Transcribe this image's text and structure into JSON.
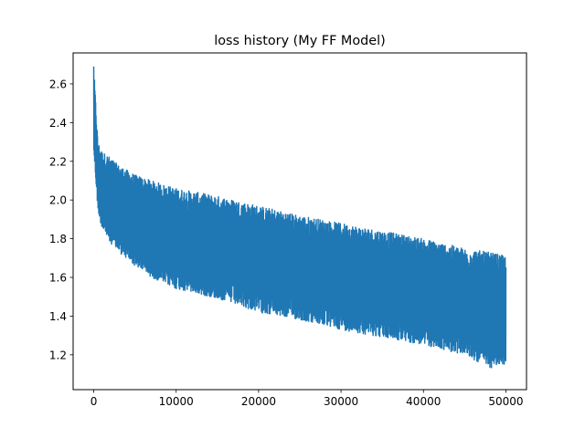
{
  "chart_data": {
    "type": "line",
    "title": "loss history (My FF Model)",
    "xlabel": "",
    "ylabel": "",
    "xlim": [
      -2500,
      52500
    ],
    "ylim": [
      1.02,
      2.76
    ],
    "xticks": [
      0,
      10000,
      20000,
      30000,
      40000,
      50000
    ],
    "xtick_labels": [
      "0",
      "10000",
      "20000",
      "30000",
      "40000",
      "50000"
    ],
    "yticks": [
      1.2,
      1.4,
      1.6,
      1.8,
      2.0,
      2.2,
      2.4,
      2.6
    ],
    "ytick_labels": [
      "1.2",
      "1.4",
      "1.6",
      "1.8",
      "2.0",
      "2.2",
      "2.4",
      "2.6"
    ],
    "grid": false,
    "legend": "none",
    "series": [
      {
        "color": "#1f77b4",
        "x_range": [
          0,
          50000
        ],
        "initial_peak": 2.69,
        "envelope": {
          "x": [
            0,
            500,
            1000,
            2000,
            3000,
            5000,
            7000,
            10000,
            15000,
            20000,
            25000,
            30000,
            35000,
            40000,
            45000,
            48000,
            50000
          ],
          "upper": [
            2.69,
            2.3,
            2.25,
            2.22,
            2.18,
            2.13,
            2.1,
            2.06,
            2.02,
            1.97,
            1.92,
            1.88,
            1.84,
            1.8,
            1.75,
            1.73,
            1.71
          ],
          "lower": [
            2.25,
            1.95,
            1.85,
            1.78,
            1.73,
            1.66,
            1.6,
            1.54,
            1.49,
            1.42,
            1.38,
            1.33,
            1.29,
            1.25,
            1.2,
            1.13,
            1.15
          ]
        }
      }
    ]
  }
}
